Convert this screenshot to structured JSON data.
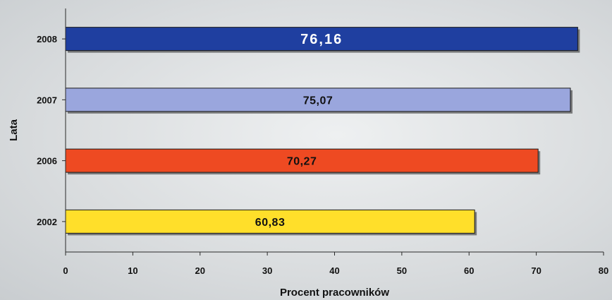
{
  "chart_data": {
    "type": "bar",
    "orientation": "horizontal",
    "categories": [
      "2008",
      "2007",
      "2006",
      "2002"
    ],
    "values": [
      76.16,
      75.07,
      70.27,
      60.83
    ],
    "value_labels": [
      "76,16",
      "75,07",
      "70,27",
      "60,83"
    ],
    "bar_colors": [
      "#1f3fa0",
      "#9aa6dd",
      "#ee4a22",
      "#ffdf2a"
    ],
    "xlabel": "Procent pracowników",
    "ylabel": "Lata",
    "xlim": [
      0,
      80
    ],
    "xticks": [
      "0",
      "10",
      "20",
      "30",
      "40",
      "50",
      "60",
      "70",
      "80"
    ],
    "grid": false
  }
}
